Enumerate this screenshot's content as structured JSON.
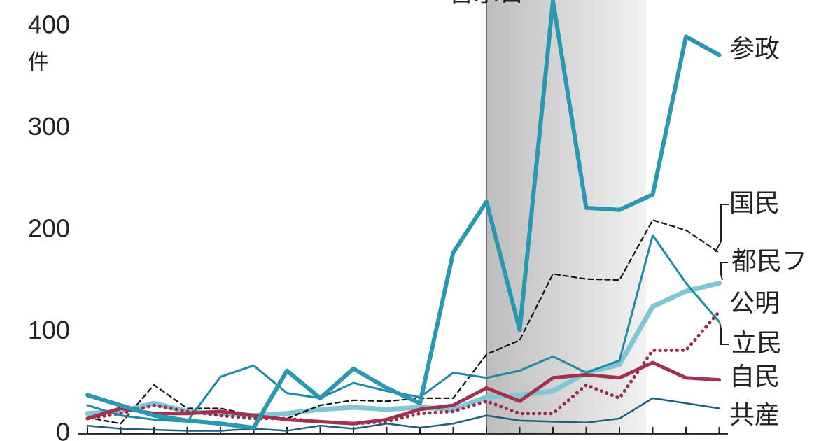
{
  "chart_data": {
    "type": "line",
    "y_label": "件",
    "highlight": {
      "label": "告示日",
      "from": 12,
      "to": 16.8
    },
    "categories": [
      null,
      null,
      null,
      null,
      null,
      null,
      null,
      null,
      null,
      null,
      null,
      null,
      null,
      null,
      null,
      null,
      null,
      null,
      null,
      null
    ],
    "ylim": [
      -7,
      426
    ],
    "yticks": [
      0,
      100,
      200,
      300,
      400
    ],
    "series": [
      {
        "name": "参政",
        "color": "#2b98b3",
        "values": [
          38,
          28,
          18,
          13,
          10,
          6,
          62,
          35,
          64,
          45,
          30,
          178,
          228,
          102,
          425,
          222,
          220,
          235,
          390,
          372
        ]
      },
      {
        "name": "国民",
        "color": "#111111",
        "style": "dashed",
        "values": [
          16,
          10,
          48,
          25,
          25,
          18,
          15,
          28,
          33,
          32,
          35,
          35,
          78,
          92,
          157,
          152,
          151,
          210,
          200,
          178
        ]
      },
      {
        "name": "都民フ",
        "color": "#82c6d6",
        "values": [
          20,
          22,
          30,
          22,
          20,
          18,
          20,
          24,
          26,
          24,
          26,
          24,
          36,
          38,
          42,
          60,
          68,
          125,
          140,
          148
        ]
      },
      {
        "name": "公明",
        "color": "#9b2d4c",
        "style": "dotted",
        "values": [
          15,
          20,
          28,
          22,
          18,
          15,
          15,
          12,
          10,
          12,
          20,
          22,
          32,
          20,
          20,
          48,
          35,
          82,
          82,
          120
        ]
      },
      {
        "name": "立民",
        "color": "#1f8aa6",
        "values": [
          28,
          18,
          14,
          12,
          56,
          67,
          40,
          35,
          50,
          42,
          36,
          60,
          55,
          62,
          76,
          60,
          72,
          195,
          148,
          110
        ]
      },
      {
        "name": "自民",
        "color": "#a3304f",
        "values": [
          15,
          25,
          20,
          20,
          22,
          18,
          14,
          12,
          10,
          14,
          24,
          28,
          45,
          32,
          55,
          58,
          55,
          70,
          55,
          53
        ]
      },
      {
        "name": "共産",
        "color": "#1d5f7a",
        "values": [
          8,
          5,
          4,
          3,
          3,
          5,
          3,
          8,
          5,
          10,
          6,
          10,
          18,
          13,
          12,
          11,
          15,
          35,
          30,
          25
        ]
      }
    ]
  }
}
